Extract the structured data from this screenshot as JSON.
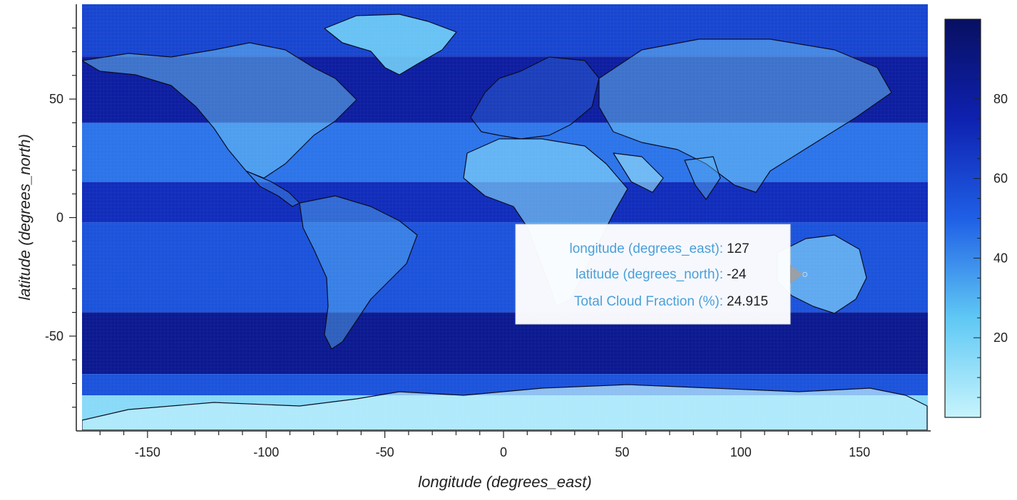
{
  "chart_data": {
    "type": "heatmap",
    "title": "",
    "xlabel": "longitude (degrees_east)",
    "ylabel": "latitude (degrees_north)",
    "xlim": [
      -180,
      180
    ],
    "ylim": [
      -90,
      90
    ],
    "x_ticks": [
      -150,
      -100,
      -50,
      0,
      50,
      100,
      150
    ],
    "y_ticks": [
      50,
      0,
      -50
    ],
    "colorbar": {
      "min": 0,
      "max": 100,
      "ticks": [
        80,
        60,
        40,
        20
      ],
      "colors": [
        "#c7f4fd",
        "#5fc8f4",
        "#1f5fe6",
        "#0e21b0",
        "#081061"
      ]
    },
    "grid": false,
    "lat_bands": [
      {
        "lat_from": 90,
        "lat_to": 68,
        "value": 60
      },
      {
        "lat_from": 68,
        "lat_to": 40,
        "value": 80
      },
      {
        "lat_from": 40,
        "lat_to": 15,
        "value": 45
      },
      {
        "lat_from": 15,
        "lat_to": -2,
        "value": 70
      },
      {
        "lat_from": -2,
        "lat_to": -40,
        "value": 55
      },
      {
        "lat_from": -40,
        "lat_to": -66,
        "value": 85
      },
      {
        "lat_from": -66,
        "lat_to": -75,
        "value": 55
      },
      {
        "lat_from": -75,
        "lat_to": -90,
        "value": 15
      }
    ],
    "tooltip": {
      "rows": [
        {
          "key": "longitude (degrees_east):",
          "value": "127"
        },
        {
          "key": "latitude (degrees_north):",
          "value": "-24"
        },
        {
          "key": "Total Cloud Fraction (%):",
          "value": "24.915"
        }
      ],
      "anchor_lon": 127,
      "anchor_lat": -24
    }
  }
}
